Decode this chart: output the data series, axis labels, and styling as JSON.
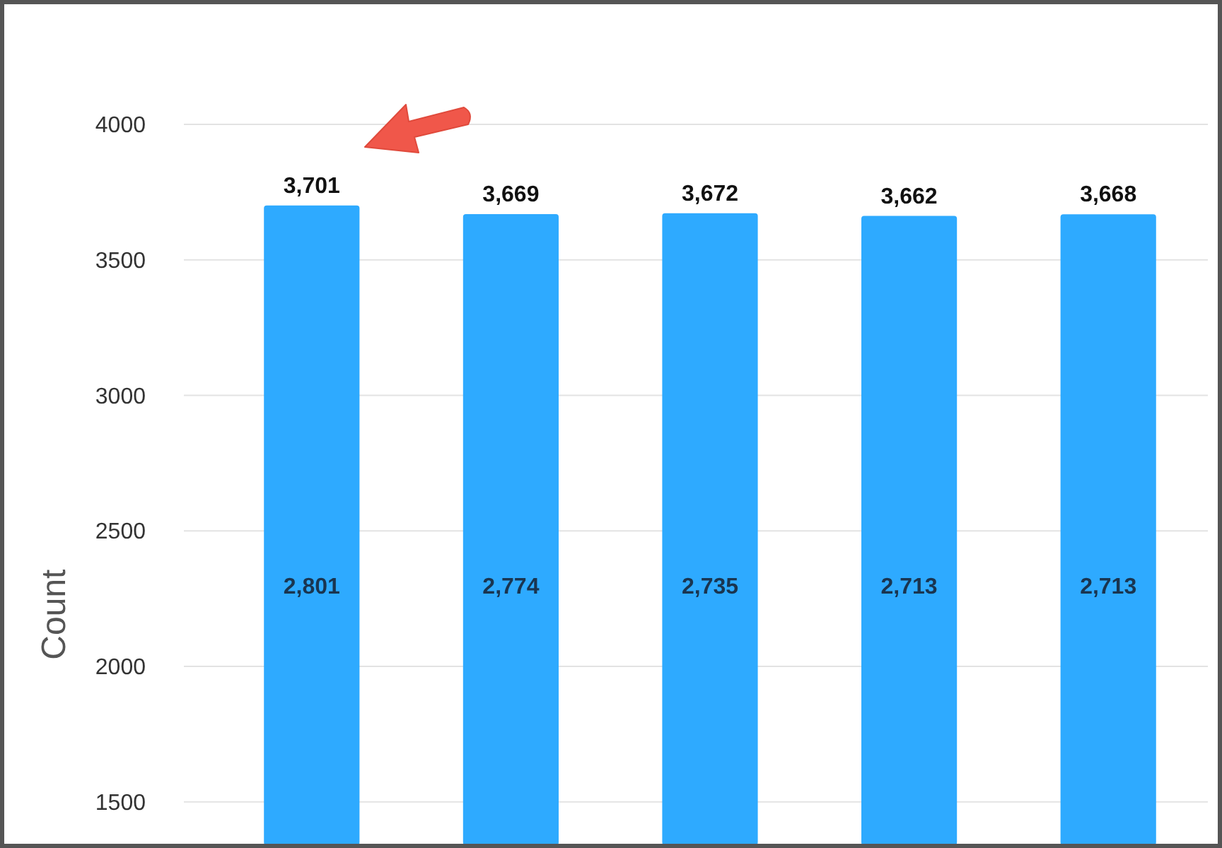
{
  "chart_data": {
    "type": "bar",
    "ylabel": "Count",
    "categories": [
      null,
      null,
      null,
      null,
      null
    ],
    "series": [
      {
        "color": "#2eaaff",
        "values": [
          3701,
          3669,
          3672,
          3662,
          3668
        ],
        "value_labels": [
          "3,701",
          "3,669",
          "3,672",
          "3,662",
          "3,668"
        ]
      }
    ],
    "annotations": [
      "2,801",
      "2,774",
      "2,735",
      "2,713",
      "2,713"
    ],
    "ylim": [
      1340,
      4000
    ],
    "yticks": [
      1500,
      2000,
      2500,
      3000,
      3500,
      4000
    ],
    "grid": "y"
  }
}
